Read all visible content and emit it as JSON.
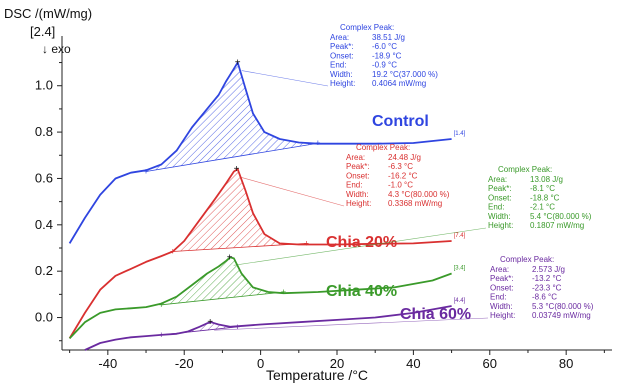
{
  "chart_data": {
    "type": "line",
    "title": "",
    "ylabel": "DSC /(mW/mg)",
    "ylabel_scale": "[2.4]",
    "exo_label": "exo",
    "xlabel": "Temperature /°C",
    "xlim": [
      -52,
      92
    ],
    "ylim": [
      -0.14,
      1.18
    ],
    "xticks": [
      -40,
      -20,
      0,
      20,
      40,
      60,
      80
    ],
    "yticks": [
      0.0,
      0.2,
      0.4,
      0.6,
      0.8,
      1.0
    ],
    "grid": false,
    "series": [
      {
        "name": "Control",
        "color": "#2f45e0",
        "tag": "[1.4]",
        "points": [
          [
            -50,
            0.32
          ],
          [
            -46,
            0.43
          ],
          [
            -42,
            0.53
          ],
          [
            -38,
            0.6
          ],
          [
            -34,
            0.625
          ],
          [
            -30,
            0.635
          ],
          [
            -26,
            0.66
          ],
          [
            -22,
            0.72
          ],
          [
            -18,
            0.82
          ],
          [
            -14,
            0.9
          ],
          [
            -11,
            0.96
          ],
          [
            -9,
            1.02
          ],
          [
            -7.5,
            1.06
          ],
          [
            -6,
            1.1
          ],
          [
            -4,
            0.99
          ],
          [
            -2,
            0.88
          ],
          [
            1,
            0.8
          ],
          [
            5,
            0.77
          ],
          [
            10,
            0.755
          ],
          [
            15,
            0.75
          ],
          [
            20,
            0.75
          ],
          [
            30,
            0.75
          ],
          [
            40,
            0.753
          ],
          [
            50,
            0.77
          ]
        ],
        "baseline": [
          [
            -30,
            0.63
          ],
          [
            15,
            0.752
          ]
        ],
        "peak_label_pos": [
          -6,
          1.1
        ],
        "annotation": {
          "title": "Complex Peak:",
          "rows": [
            {
              "k": "Area:",
              "v": "38.51 J/g"
            },
            {
              "k": "Peak*:",
              "v": "-6.0 °C"
            },
            {
              "k": "Onset:",
              "v": "-18.9 °C"
            },
            {
              "k": "End:",
              "v": "-0.9 °C"
            },
            {
              "k": "Width:",
              "v": "19.2 °C(37.000 %)"
            },
            {
              "k": "Height:",
              "v": "0.4064 mW/mg"
            }
          ]
        }
      },
      {
        "name": "Chia 20%",
        "color": "#d93030",
        "tag": "[7.4]",
        "points": [
          [
            -50,
            -0.09
          ],
          [
            -46,
            0.02
          ],
          [
            -42,
            0.12
          ],
          [
            -38,
            0.18
          ],
          [
            -34,
            0.21
          ],
          [
            -30,
            0.24
          ],
          [
            -26,
            0.265
          ],
          [
            -23,
            0.285
          ],
          [
            -20,
            0.33
          ],
          [
            -16,
            0.42
          ],
          [
            -12,
            0.51
          ],
          [
            -9,
            0.58
          ],
          [
            -7,
            0.63
          ],
          [
            -6,
            0.64
          ],
          [
            -4,
            0.55
          ],
          [
            -2,
            0.45
          ],
          [
            1,
            0.36
          ],
          [
            5,
            0.32
          ],
          [
            10,
            0.315
          ],
          [
            20,
            0.315
          ],
          [
            30,
            0.318
          ],
          [
            40,
            0.32
          ],
          [
            50,
            0.33
          ]
        ],
        "baseline": [
          [
            -23,
            0.285
          ],
          [
            12,
            0.32
          ]
        ],
        "peak_label_pos": [
          -6.3,
          0.64
        ],
        "annotation": {
          "title": "Complex Peak:",
          "rows": [
            {
              "k": "Area:",
              "v": "24.48 J/g"
            },
            {
              "k": "Peak*:",
              "v": "-6.3 °C"
            },
            {
              "k": "Onset:",
              "v": "-16.2 °C"
            },
            {
              "k": "End:",
              "v": "-1.0 °C"
            },
            {
              "k": "Width:",
              "v": "4.3 °C(80.000 %)"
            },
            {
              "k": "Height:",
              "v": "0.3368 mW/mg"
            }
          ]
        }
      },
      {
        "name": "Chia 40%",
        "color": "#3a9a2a",
        "tag": "[3.4]",
        "points": [
          [
            -50,
            -0.09
          ],
          [
            -46,
            -0.02
          ],
          [
            -42,
            0.02
          ],
          [
            -38,
            0.035
          ],
          [
            -34,
            0.04
          ],
          [
            -30,
            0.045
          ],
          [
            -26,
            0.06
          ],
          [
            -22,
            0.09
          ],
          [
            -18,
            0.14
          ],
          [
            -14,
            0.19
          ],
          [
            -11,
            0.22
          ],
          [
            -9,
            0.245
          ],
          [
            -8,
            0.26
          ],
          [
            -7,
            0.255
          ],
          [
            -5,
            0.19
          ],
          [
            -2,
            0.13
          ],
          [
            2,
            0.11
          ],
          [
            6,
            0.105
          ],
          [
            15,
            0.11
          ],
          [
            25,
            0.12
          ],
          [
            35,
            0.13
          ],
          [
            45,
            0.16
          ],
          [
            50,
            0.19
          ]
        ],
        "baseline": [
          [
            -26,
            0.055
          ],
          [
            6,
            0.11
          ]
        ],
        "peak_label_pos": [
          -8.1,
          0.26
        ],
        "annotation": {
          "title": "Complex Peak:",
          "rows": [
            {
              "k": "Area:",
              "v": "13.08 J/g"
            },
            {
              "k": "Peak*:",
              "v": "-8.1 °C"
            },
            {
              "k": "Onset:",
              "v": "-18.8 °C"
            },
            {
              "k": "End:",
              "v": "-2.1 °C"
            },
            {
              "k": "Width:",
              "v": "5.4 °C(80.000 %)"
            },
            {
              "k": "Height:",
              "v": "0.1807 mW/mg"
            }
          ]
        }
      },
      {
        "name": "Chia 60%",
        "color": "#6a2aa0",
        "tag": "[4.4]",
        "points": [
          [
            -46,
            -0.14
          ],
          [
            -42,
            -0.11
          ],
          [
            -38,
            -0.095
          ],
          [
            -34,
            -0.085
          ],
          [
            -30,
            -0.08
          ],
          [
            -26,
            -0.075
          ],
          [
            -22,
            -0.07
          ],
          [
            -19,
            -0.06
          ],
          [
            -16,
            -0.04
          ],
          [
            -14,
            -0.025
          ],
          [
            -13,
            -0.02
          ],
          [
            -11,
            -0.03
          ],
          [
            -8,
            -0.04
          ],
          [
            -4,
            -0.035
          ],
          [
            0,
            -0.03
          ],
          [
            10,
            -0.02
          ],
          [
            20,
            -0.01
          ],
          [
            30,
            0.0
          ],
          [
            40,
            0.02
          ],
          [
            50,
            0.05
          ]
        ],
        "baseline": [
          [
            -26,
            -0.075
          ],
          [
            -6,
            -0.04
          ]
        ],
        "peak_label_pos": [
          -13.2,
          -0.02
        ],
        "annotation": {
          "title": "Complex Peak:",
          "rows": [
            {
              "k": "Area:",
              "v": "2.573 J/g"
            },
            {
              "k": "Peak*:",
              "v": "-13.2 °C"
            },
            {
              "k": "Onset:",
              "v": "-23.3 °C"
            },
            {
              "k": "End:",
              "v": "-8.6 °C"
            },
            {
              "k": "Width:",
              "v": "5.3 °C(80.000 %)"
            },
            {
              "k": "Height:",
              "v": "0.03749 mW/mg"
            }
          ]
        }
      }
    ]
  }
}
